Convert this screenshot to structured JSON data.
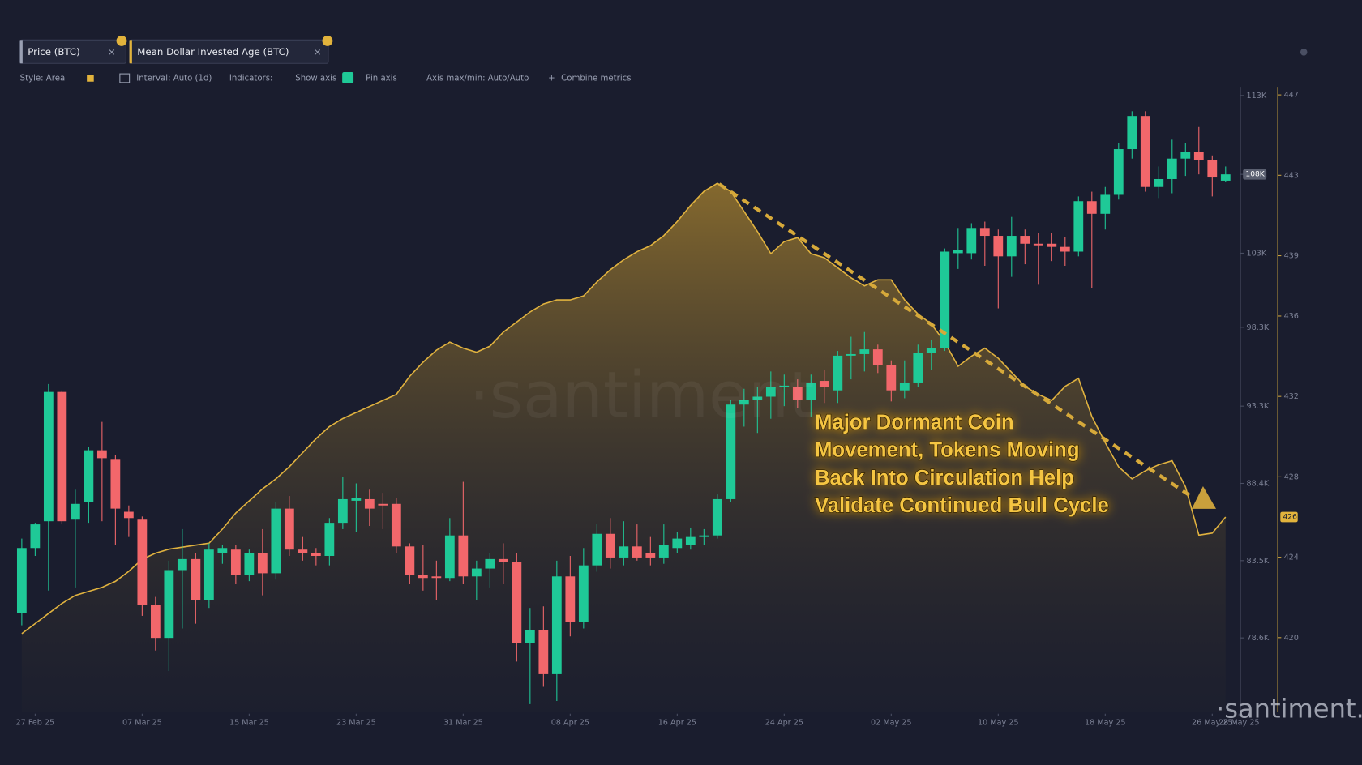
{
  "ui": {
    "tabs": [
      "Price (BTC)",
      "Mean Dollar Invested Age (BTC)"
    ],
    "toolbar": {
      "style": "Style: Area",
      "interval": "Interval: Auto (1d)",
      "indicators": "Indicators:",
      "show_axis": "Show axis",
      "pin_axis": "Pin axis",
      "axis_maxmin": "Axis max/min: Auto/Auto",
      "combine": "Combine metrics"
    },
    "watermark": "·santiment",
    "logo": "·santiment."
  },
  "chart_data": {
    "type": "candlestick",
    "annotation": [
      "Major Dormant Coin",
      "Movement, Tokens Moving",
      "Back Into Circulation Help",
      "Validate Continued Bull Cycle"
    ],
    "x": [
      0,
      1,
      2,
      3,
      4,
      5,
      6,
      7,
      8,
      9,
      10,
      11,
      12,
      13,
      14,
      15,
      16,
      17,
      18,
      19,
      20,
      21,
      22,
      23,
      24,
      25,
      26,
      27,
      28,
      29,
      30,
      31,
      32,
      33,
      34,
      35,
      36,
      37,
      38,
      39,
      40,
      41,
      42,
      43,
      44,
      45,
      46,
      47,
      48,
      49,
      50,
      51,
      52,
      53,
      54,
      55,
      56,
      57,
      58,
      59,
      60,
      61,
      62,
      63,
      64,
      65,
      66,
      67,
      68,
      69,
      70,
      71,
      72,
      73,
      74,
      75,
      76,
      77,
      78,
      79,
      80,
      81,
      82,
      83,
      84,
      85,
      86,
      87,
      88,
      89,
      90
    ],
    "xlim": [
      -0.2,
      91
    ],
    "xticks": [
      {
        "value": 1,
        "label": "27 Feb 25"
      },
      {
        "value": 9,
        "label": "07 Mar 25"
      },
      {
        "value": 17,
        "label": "15 Mar 25"
      },
      {
        "value": 25,
        "label": "23 Mar 25"
      },
      {
        "value": 33,
        "label": "31 Mar 25"
      },
      {
        "value": 41,
        "label": "08 Apr 25"
      },
      {
        "value": 49,
        "label": "16 Apr 25"
      },
      {
        "value": 57,
        "label": "24 Apr 25"
      },
      {
        "value": 65,
        "label": "02 May 25"
      },
      {
        "value": 73,
        "label": "10 May 25"
      },
      {
        "value": 81,
        "label": "18 May 25"
      },
      {
        "value": 89,
        "label": "26 May 25"
      },
      {
        "value": 91,
        "label": "28 May 25"
      }
    ],
    "ylim": [
      73.9,
      113.55
    ],
    "yticks": [
      {
        "value": 113,
        "label": "113K"
      },
      {
        "value": 108,
        "label": "108K"
      },
      {
        "value": 103,
        "label": "103K"
      },
      {
        "value": 98.3,
        "label": "98.3K"
      },
      {
        "value": 93.3,
        "label": "93.3K"
      },
      {
        "value": 88.4,
        "label": "88.4K"
      },
      {
        "value": 83.5,
        "label": "83.5K"
      },
      {
        "value": 78.6,
        "label": "78.6K"
      }
    ],
    "y2lim": [
      416.3,
      447.4
    ],
    "y2ticks": [
      447,
      443,
      439,
      436,
      432,
      428,
      424,
      420
    ],
    "price_badge": {
      "value": 108,
      "label": "108K"
    },
    "y2_badge": {
      "value": 426,
      "label": "426"
    },
    "series": [
      {
        "name": "Price (BTC)",
        "type": "candlestick",
        "color_up": "#1fc997",
        "color_down": "#f2676b",
        "open": [
          80.2,
          84.3,
          86.0,
          94.2,
          86.1,
          87.2,
          90.5,
          89.9,
          86.6,
          86.1,
          80.7,
          78.6,
          82.9,
          83.6,
          81.0,
          84.0,
          84.2,
          82.6,
          84.0,
          82.7,
          86.8,
          84.2,
          84.0,
          83.8,
          85.9,
          87.3,
          87.4,
          87.1,
          87.1,
          84.4,
          82.6,
          82.5,
          82.4,
          85.1,
          82.5,
          83.0,
          83.6,
          83.4,
          78.3,
          79.1,
          76.3,
          82.5,
          79.6,
          83.2,
          85.2,
          83.7,
          84.4,
          84.0,
          83.7,
          84.3,
          84.5,
          85.0,
          85.1,
          87.4,
          93.4,
          93.7,
          93.9,
          94.5,
          94.5,
          93.7,
          94.9,
          94.3,
          96.5,
          96.6,
          96.9,
          95.9,
          94.3,
          94.8,
          96.7,
          97.0,
          103.0,
          103.0,
          104.6,
          104.1,
          102.8,
          104.1,
          103.6,
          103.6,
          103.4,
          103.1,
          106.3,
          105.5,
          106.7,
          109.6,
          111.7,
          107.2,
          107.7,
          109.0,
          109.4,
          108.9,
          107.6
        ],
        "high": [
          84.9,
          85.9,
          94.7,
          94.3,
          88.0,
          90.7,
          92.3,
          90.2,
          87.0,
          86.3,
          81.2,
          83.5,
          85.5,
          84.0,
          84.6,
          84.5,
          84.5,
          84.2,
          85.5,
          87.2,
          87.6,
          85.0,
          84.3,
          86.2,
          88.8,
          88.4,
          88.0,
          87.8,
          87.5,
          84.6,
          84.5,
          83.5,
          86.2,
          88.5,
          83.5,
          84.0,
          84.6,
          84.0,
          80.5,
          80.6,
          83.5,
          83.8,
          84.3,
          85.8,
          86.2,
          86.0,
          85.8,
          85.0,
          85.8,
          85.3,
          85.6,
          85.5,
          87.7,
          93.7,
          94.4,
          94.5,
          95.5,
          95.3,
          95.0,
          95.3,
          95.6,
          96.8,
          97.7,
          98.0,
          97.2,
          96.2,
          96.2,
          97.2,
          97.5,
          103.3,
          104.6,
          104.9,
          105.0,
          104.5,
          105.3,
          104.5,
          104.3,
          104.3,
          104.0,
          106.6,
          106.9,
          107.2,
          110.0,
          112.0,
          112.0,
          108.5,
          110.2,
          110.0,
          111.0,
          109.2,
          108.5
        ],
        "low": [
          79.4,
          83.8,
          81.6,
          85.8,
          81.8,
          85.9,
          86.0,
          84.5,
          85.0,
          80.0,
          77.8,
          76.5,
          79.2,
          79.5,
          80.5,
          83.3,
          82.0,
          82.2,
          81.3,
          82.3,
          83.8,
          83.5,
          83.2,
          83.2,
          85.5,
          85.3,
          85.7,
          85.5,
          84.0,
          82.0,
          81.6,
          81.0,
          82.2,
          82.0,
          81.0,
          81.8,
          82.0,
          77.1,
          74.4,
          75.5,
          74.6,
          78.7,
          79.2,
          82.8,
          83.0,
          83.2,
          83.5,
          83.2,
          83.3,
          84.0,
          84.2,
          84.5,
          84.9,
          87.2,
          92.0,
          91.6,
          92.5,
          93.3,
          93.2,
          92.6,
          93.5,
          93.5,
          95.0,
          95.5,
          95.4,
          93.6,
          93.8,
          94.5,
          95.6,
          96.8,
          102.0,
          102.6,
          102.2,
          99.5,
          101.5,
          102.3,
          101.0,
          102.5,
          102.2,
          102.8,
          100.8,
          104.5,
          106.4,
          109.0,
          106.9,
          106.5,
          106.8,
          107.9,
          108.0,
          106.6,
          107.5
        ],
        "close": [
          84.3,
          85.8,
          94.2,
          86.0,
          87.1,
          90.5,
          90.0,
          86.8,
          86.2,
          80.7,
          78.6,
          82.9,
          83.6,
          81.0,
          84.2,
          84.3,
          82.6,
          84.0,
          82.7,
          86.8,
          84.2,
          84.0,
          83.8,
          85.9,
          87.4,
          87.5,
          86.8,
          87.0,
          84.4,
          82.6,
          82.4,
          82.4,
          85.1,
          82.5,
          83.0,
          83.6,
          83.4,
          78.3,
          79.1,
          76.3,
          82.5,
          79.6,
          83.2,
          85.2,
          83.7,
          84.4,
          83.7,
          83.7,
          84.5,
          84.9,
          85.0,
          85.1,
          87.4,
          93.4,
          93.7,
          93.9,
          94.5,
          94.6,
          93.7,
          94.8,
          94.5,
          96.5,
          96.6,
          96.9,
          95.9,
          94.3,
          94.8,
          96.7,
          97.0,
          103.1,
          103.2,
          104.6,
          104.1,
          102.8,
          104.1,
          103.6,
          103.5,
          103.4,
          103.1,
          106.3,
          105.5,
          106.7,
          109.6,
          111.7,
          107.2,
          107.7,
          109.0,
          109.4,
          108.9,
          107.8,
          108.0
        ]
      },
      {
        "name": "Mean Dollar Invested Age (BTC)",
        "type": "area",
        "axis": "y2",
        "color": "#e0b23f",
        "values": [
          420.2,
          420.7,
          421.2,
          421.7,
          422.1,
          422.3,
          422.5,
          422.8,
          423.3,
          423.9,
          424.2,
          424.4,
          424.5,
          424.6,
          424.7,
          425.4,
          426.2,
          426.8,
          427.4,
          427.9,
          428.5,
          429.2,
          429.9,
          430.5,
          430.9,
          431.2,
          431.5,
          431.8,
          432.1,
          433.0,
          433.7,
          434.3,
          434.7,
          434.4,
          434.2,
          434.5,
          435.2,
          435.7,
          436.2,
          436.6,
          436.8,
          436.8,
          437.0,
          437.7,
          438.3,
          438.8,
          439.2,
          439.5,
          440.0,
          440.7,
          441.5,
          442.2,
          442.6,
          442.2,
          441.2,
          440.2,
          439.1,
          439.7,
          439.9,
          439.1,
          438.9,
          438.4,
          437.9,
          437.5,
          437.8,
          437.8,
          436.8,
          436.1,
          435.6,
          434.7,
          433.5,
          434.0,
          434.4,
          433.9,
          433.2,
          432.5,
          432.1,
          431.8,
          432.5,
          432.9,
          431.0,
          429.7,
          428.5,
          427.9,
          428.3,
          428.6,
          428.8,
          427.5,
          425.1,
          425.2,
          426.0
        ]
      }
    ]
  }
}
